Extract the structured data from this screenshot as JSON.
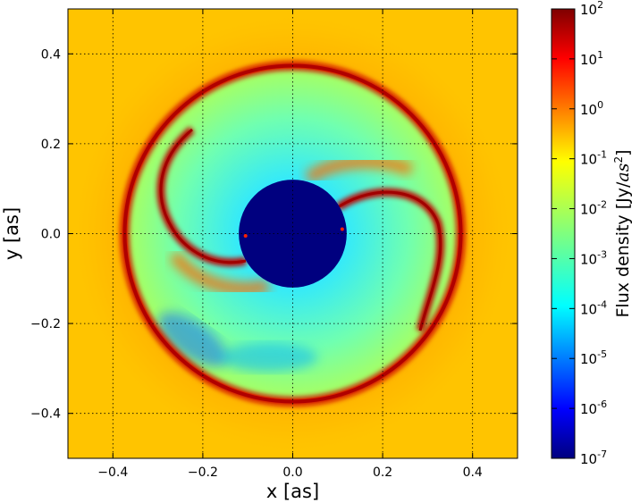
{
  "chart_data": {
    "type": "heatmap",
    "xlabel": "x [as]",
    "ylabel": "y [as]",
    "xlim": [
      -0.5,
      0.5
    ],
    "ylim": [
      -0.5,
      0.5
    ],
    "x_ticks": [
      {
        "value": -0.4,
        "label": "−0.4"
      },
      {
        "value": -0.2,
        "label": "−0.2"
      },
      {
        "value": 0.0,
        "label": "0.0"
      },
      {
        "value": 0.2,
        "label": "0.2"
      },
      {
        "value": 0.4,
        "label": "0.4"
      }
    ],
    "y_ticks": [
      {
        "value": 0.4,
        "label": "0.4"
      },
      {
        "value": 0.2,
        "label": "0.2"
      },
      {
        "value": 0.0,
        "label": "0.0"
      },
      {
        "value": -0.2,
        "label": "−0.2"
      },
      {
        "value": -0.4,
        "label": "−0.4"
      }
    ],
    "grid": true,
    "colorbar": {
      "label_prefix": "Flux density [Jy/",
      "label_unit": "as",
      "label_power": "2",
      "label_suffix": "]",
      "scale": "log",
      "range": [
        1e-07,
        100
      ],
      "colormap": "jet",
      "ticks": [
        {
          "base": "10",
          "exp": "2",
          "value": 100
        },
        {
          "base": "10",
          "exp": "1",
          "value": 10
        },
        {
          "base": "10",
          "exp": "0",
          "value": 1
        },
        {
          "base": "10",
          "exp": "-1",
          "value": 0.1
        },
        {
          "base": "10",
          "exp": "-2",
          "value": 0.01
        },
        {
          "base": "10",
          "exp": "-3",
          "value": 0.001
        },
        {
          "base": "10",
          "exp": "-4",
          "value": 0.0001
        },
        {
          "base": "10",
          "exp": "-5",
          "value": 1e-05
        },
        {
          "base": "10",
          "exp": "-6",
          "value": 1e-06
        },
        {
          "base": "10",
          "exp": "-7",
          "value": 1e-07
        }
      ]
    },
    "features": {
      "central_mask_radius": 0.12,
      "central_mask_value": 1e-07,
      "background_value": 0.1,
      "ring_radius": 0.38,
      "ring_value": 30,
      "inner_cavity_value": 0.001,
      "spiral_arm_value": 30,
      "point_sources": [
        {
          "x": -0.105,
          "y": -0.005
        },
        {
          "x": 0.11,
          "y": 0.01
        }
      ]
    }
  },
  "colors": {
    "mask": "#00007f",
    "background": "#ffc400",
    "outer_halo": "#ff9000",
    "ring": "#c00000",
    "cavity": "#60ffa0",
    "cavity_deep": "#00b8ff",
    "arm": "#b00000",
    "point_source": "#ff2000"
  }
}
